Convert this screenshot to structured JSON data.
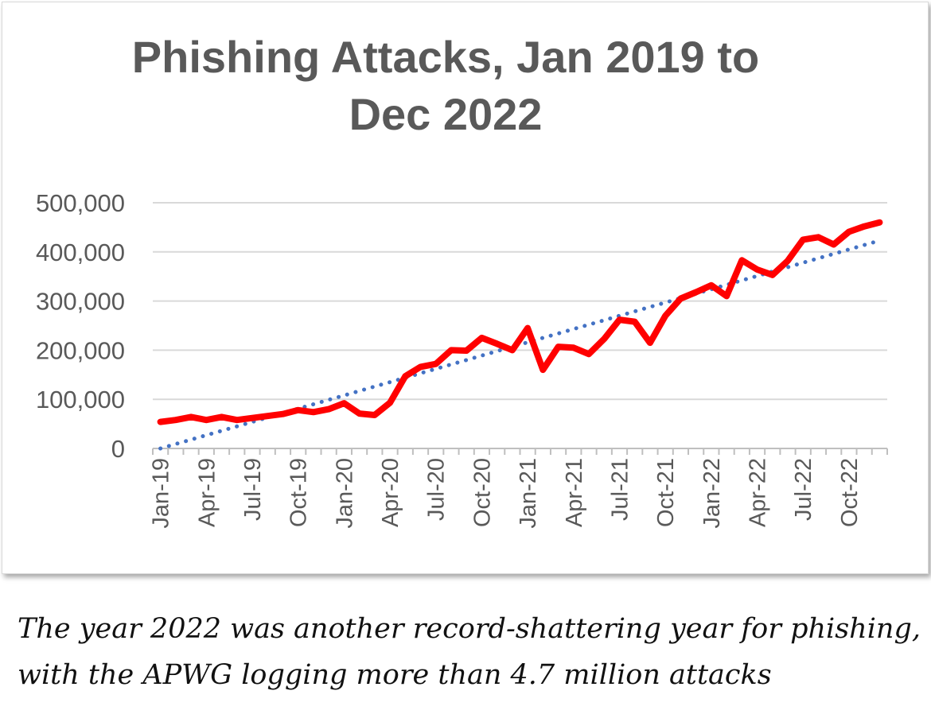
{
  "chart_data": {
    "type": "line",
    "title": "Phishing Attacks, Jan 2019 to Dec 2022",
    "title_lines": [
      "Phishing Attacks, Jan 2019 to",
      "Dec 2022"
    ],
    "xlabel": "",
    "ylabel": "",
    "ylim": [
      0,
      500000
    ],
    "yticks": [
      0,
      100000,
      200000,
      300000,
      400000,
      500000
    ],
    "ytick_labels": [
      "0",
      "100,000",
      "200,000",
      "300,000",
      "400,000",
      "500,000"
    ],
    "xtick_labels": [
      "Jan-19",
      "Apr-19",
      "Jul-19",
      "Oct-19",
      "Jan-20",
      "Apr-20",
      "Jul-20",
      "Oct-20",
      "Jan-21",
      "Apr-21",
      "Jul-21",
      "Oct-21",
      "Jan-22",
      "Apr-22",
      "Jul-22",
      "Oct-22"
    ],
    "x": [
      "Jan-19",
      "Feb-19",
      "Mar-19",
      "Apr-19",
      "May-19",
      "Jun-19",
      "Jul-19",
      "Aug-19",
      "Sep-19",
      "Oct-19",
      "Nov-19",
      "Dec-19",
      "Jan-20",
      "Feb-20",
      "Mar-20",
      "Apr-20",
      "May-20",
      "Jun-20",
      "Jul-20",
      "Aug-20",
      "Sep-20",
      "Oct-20",
      "Nov-20",
      "Dec-20",
      "Jan-21",
      "Feb-21",
      "Mar-21",
      "Apr-21",
      "May-21",
      "Jun-21",
      "Jul-21",
      "Aug-21",
      "Sep-21",
      "Oct-21",
      "Nov-21",
      "Dec-21",
      "Jan-22",
      "Feb-22",
      "Mar-22",
      "Apr-22",
      "May-22",
      "Jun-22",
      "Jul-22",
      "Aug-22",
      "Sep-22",
      "Oct-22",
      "Nov-22",
      "Dec-22"
    ],
    "series": [
      {
        "values": [
          54000,
          58000,
          64000,
          58000,
          64000,
          58000,
          62000,
          66000,
          70000,
          78000,
          74000,
          80000,
          92000,
          71000,
          68000,
          93000,
          147000,
          166000,
          172000,
          200000,
          199000,
          225000,
          213000,
          200000,
          245000,
          160000,
          207000,
          205000,
          192000,
          223000,
          262000,
          258000,
          215000,
          270000,
          305000,
          318000,
          332000,
          310000,
          383000,
          364000,
          353000,
          382000,
          425000,
          430000,
          415000,
          441000,
          452000,
          460000
        ],
        "color": "#ff0000",
        "style": "solid"
      },
      {
        "trendline": "linear",
        "values": [
          0,
          9000,
          18000,
          27000,
          36000,
          45000,
          54000,
          63000,
          72000,
          81000,
          90000,
          99000,
          108000,
          117000,
          126000,
          135000,
          144000,
          153000,
          162000,
          171000,
          180000,
          189000,
          198000,
          207000,
          216000,
          225000,
          234000,
          243000,
          252000,
          261000,
          270000,
          279000,
          288000,
          297000,
          306000,
          315000,
          324000,
          333000,
          342000,
          351000,
          360000,
          369000,
          378000,
          387000,
          396000,
          405000,
          414000,
          423000
        ],
        "color": "#4472c4",
        "style": "dotted"
      }
    ],
    "grid": true,
    "gridline_color": "#d9d9d9",
    "legend": "none"
  },
  "caption_lines": [
    "The year 2022 was another record-shattering year for phishing,",
    "with the APWG logging more than 4.7 million attacks"
  ]
}
